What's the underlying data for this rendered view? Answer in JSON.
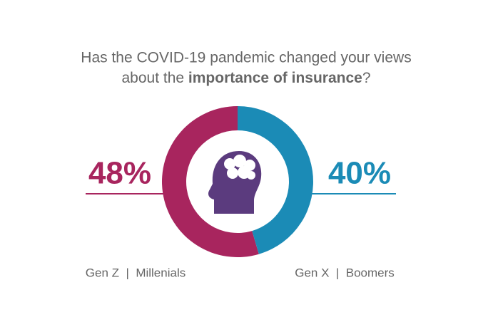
{
  "chart_data": {
    "type": "pie",
    "title_line1": "Has the COVID-19 pandemic changed your views",
    "title_line2": "about the",
    "title_emphasis": "importance of insurance",
    "title_end": "?",
    "categories": [
      "Gen Z  |  Millenials",
      "Gen X  |  Boomers"
    ],
    "values": [
      48,
      40
    ],
    "value_labels": [
      "48%",
      "40%"
    ],
    "colors": [
      "#a8255e",
      "#1b8bb6"
    ]
  }
}
